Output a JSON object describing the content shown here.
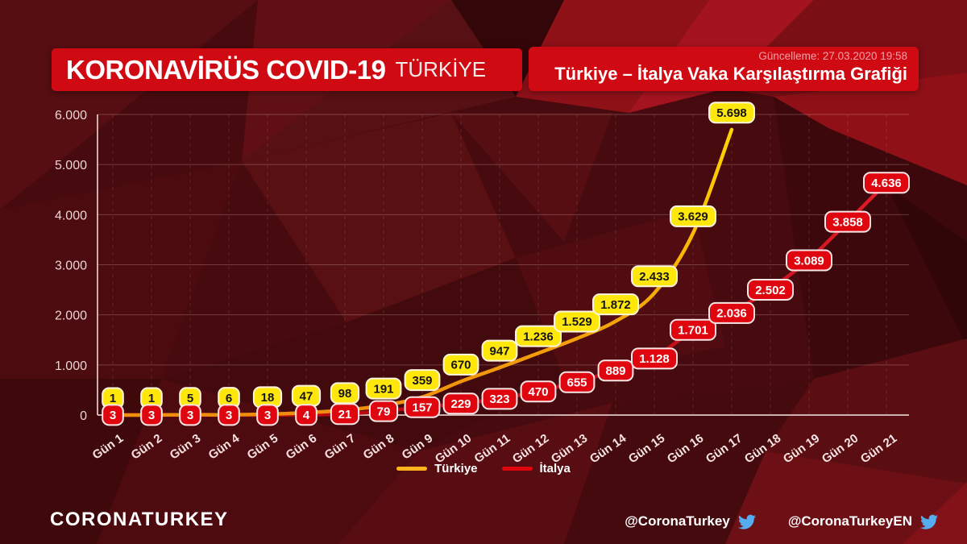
{
  "header": {
    "title_bold": "KORONAVİRÜS COVID-19",
    "title_light": "TÜRKİYE",
    "update_label": "Güncelleme: 27.03.2020 19:58",
    "chart_title": "Türkiye – İtalya Vaka Karşılaştırma Grafiği"
  },
  "legend": {
    "items": [
      "Türkiye",
      "İtalya"
    ]
  },
  "footer": {
    "brand": "CORONATURKEY",
    "handles": [
      {
        "label": "@CoronaTurkey",
        "icon": "twitter-bird-icon"
      },
      {
        "label": "@CoronaTurkeyEN",
        "icon": "twitter-bird-icon"
      }
    ]
  },
  "colors": {
    "banner_red": "#cf0a13",
    "background_maroon": "#470a0e",
    "turkiye_line_start": "#ef8d0c",
    "turkiye_line_end": "#ffd803",
    "turkiye_label_bg": "#ffe60b",
    "turkiye_label_text": "#151515",
    "turkiye_legend": "#ffb31c",
    "italya_line_start": "#b80a10",
    "italya_line_end": "#ee2130",
    "italya_label_bg": "#e0060f",
    "italya_label_text": "#ffffff",
    "axis_color": "#e3cccc",
    "tick_text": "#ecd4d4",
    "twitter_blue": "#55acee"
  },
  "chart_data": {
    "type": "line",
    "title": "Türkiye – İtalya Vaka Karşılaştırma Grafiği",
    "xlabel": "",
    "ylabel": "",
    "ylim": [
      0,
      6000
    ],
    "yticks": [
      "0",
      "1.000",
      "2.000",
      "3.000",
      "4.000",
      "5.000",
      "6.000"
    ],
    "grid": true,
    "legend_position": "bottom",
    "categories": [
      "Gün 1",
      "Gün 2",
      "Gün 3",
      "Gün 4",
      "Gün 5",
      "Gün 6",
      "Gün 7",
      "Gün 8",
      "Gün 9",
      "Gün 10",
      "Gün 11",
      "Gün 12",
      "Gün 13",
      "Gün 14",
      "Gün 15",
      "Gün 16",
      "Gün 17",
      "Gün 18",
      "Gün 19",
      "Gün 20",
      "Gün 21"
    ],
    "series": [
      {
        "name": "Türkiye",
        "color": "#ffb31c",
        "values": [
          1,
          1,
          5,
          6,
          18,
          47,
          98,
          191,
          359,
          670,
          947,
          1236,
          1529,
          1872,
          2433,
          3629,
          5698
        ],
        "labels": [
          "1",
          "1",
          "5",
          "6",
          "18",
          "47",
          "98",
          "191",
          "359",
          "670",
          "947",
          "1.236",
          "1.529",
          "1.872",
          "2.433",
          "3.629",
          "5.698"
        ]
      },
      {
        "name": "İtalya",
        "color": "#e0060f",
        "values": [
          3,
          3,
          3,
          3,
          3,
          4,
          21,
          79,
          157,
          229,
          323,
          470,
          655,
          889,
          1128,
          1701,
          2036,
          2502,
          3089,
          3858,
          4636
        ],
        "labels": [
          "3",
          "3",
          "3",
          "3",
          "3",
          "4",
          "21",
          "79",
          "157",
          "229",
          "323",
          "470",
          "655",
          "889",
          "1.128",
          "1.701",
          "2.036",
          "2.502",
          "3.089",
          "3.858",
          "4.636"
        ]
      }
    ]
  }
}
